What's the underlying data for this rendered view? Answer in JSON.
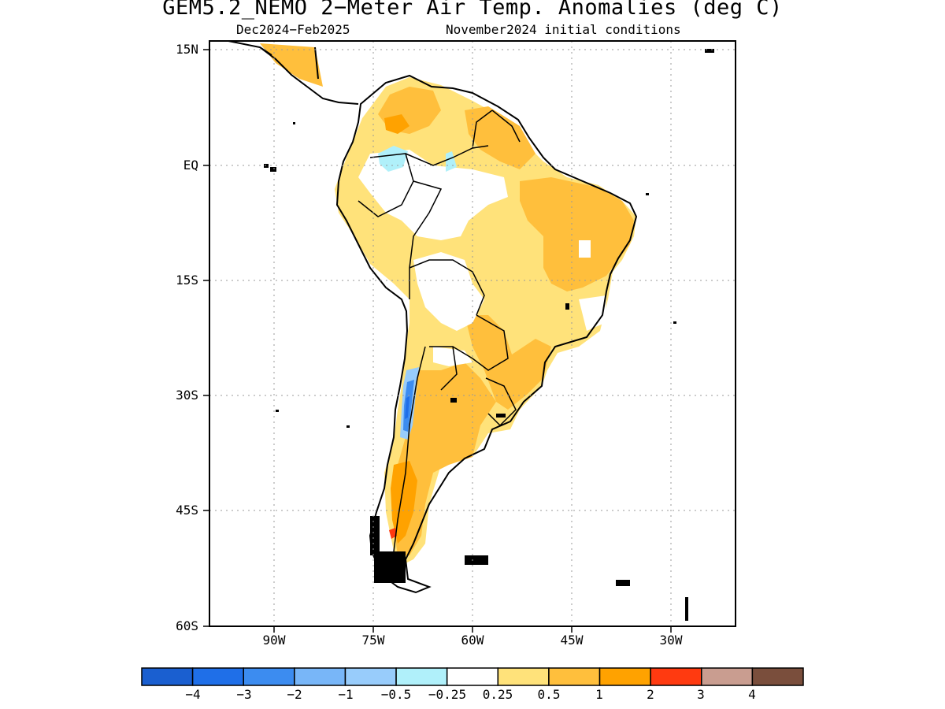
{
  "title": "GEM5.2_NEMO 2−Meter Air Temp. Anomalies (deg C)",
  "subtitle_period": "Dec2024−Feb2025",
  "subtitle_ic": "November2024 initial conditions",
  "lat_labels": [
    "15N",
    "EQ",
    "15S",
    "30S",
    "45S",
    "60S"
  ],
  "lon_labels": [
    "90W",
    "75W",
    "60W",
    "45W",
    "30W"
  ],
  "colors": {
    "neg4": "#1a5fd0",
    "neg3": "#1f6fe8",
    "neg2": "#3c8cf0",
    "neg1": "#78b6f8",
    "neg05": "#98ccfb",
    "neg025": "#b0f0fa",
    "zero": "#ffffff",
    "pos025": "#ffe27a",
    "pos05": "#ffbf3c",
    "pos1": "#ffa200",
    "pos2": "#ff3a10",
    "pos3": "#c99d90",
    "pos4": "#7a4e3c"
  },
  "colorbar": {
    "colors": [
      "#1a5fd0",
      "#1f6fe8",
      "#3c8cf0",
      "#78b6f8",
      "#98ccfb",
      "#b0f0fa",
      "#ffffff",
      "#ffe27a",
      "#ffbf3c",
      "#ffa200",
      "#ff3a10",
      "#c99d90",
      "#7a4e3c"
    ],
    "labels": [
      "−4",
      "−3",
      "−2",
      "−1",
      "−0.5",
      "−0.25",
      "0.25",
      "0.5",
      "1",
      "2",
      "3",
      "4"
    ]
  }
}
